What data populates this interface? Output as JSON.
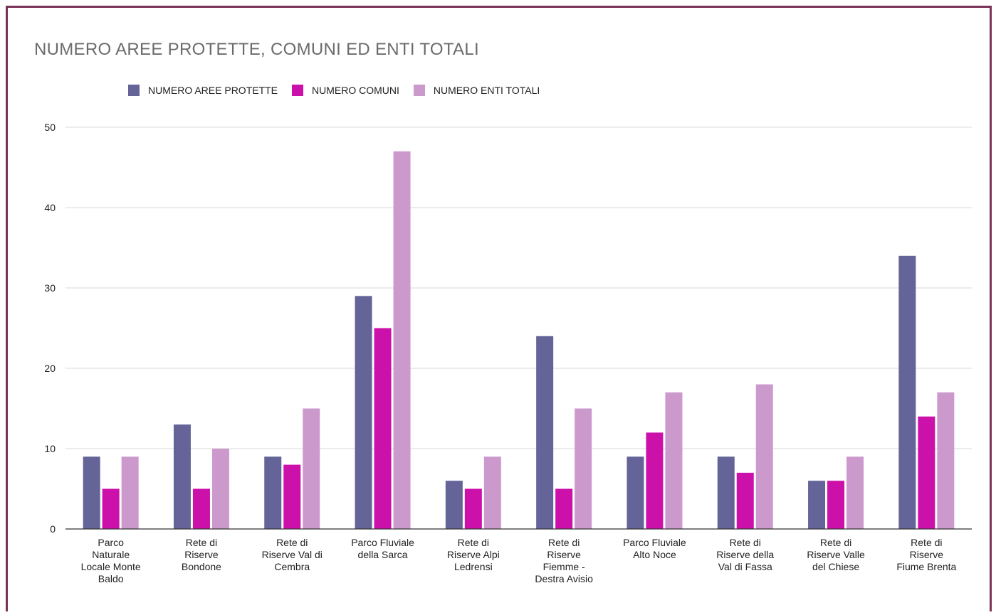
{
  "chart_data": {
    "type": "bar",
    "title": "NUMERO AREE PROTETTE, COMUNI ED ENTI TOTALI",
    "categories": [
      [
        "Parco",
        "Naturale",
        "Locale Monte",
        "Baldo"
      ],
      [
        "Rete di",
        "Riserve",
        "Bondone"
      ],
      [
        "Rete di",
        "Riserve Val di",
        "Cembra"
      ],
      [
        "Parco Fluviale",
        "della Sarca"
      ],
      [
        "Rete di",
        "Riserve Alpi",
        "Ledrensi"
      ],
      [
        "Rete di",
        "Riserve",
        "Fiemme -",
        "Destra Avisio"
      ],
      [
        "Parco Fluviale",
        "Alto Noce"
      ],
      [
        "Rete di",
        "Riserve della",
        "Val di Fassa"
      ],
      [
        "Rete di",
        "Riserve Valle",
        "del Chiese"
      ],
      [
        "Rete di",
        "Riserve",
        "Fiume Brenta"
      ]
    ],
    "series": [
      {
        "name": "NUMERO AREE PROTETTE",
        "color": "#646498",
        "values": [
          9,
          13,
          9,
          29,
          6,
          24,
          9,
          9,
          6,
          34
        ]
      },
      {
        "name": "NUMERO COMUNI",
        "color": "#cc11aa",
        "values": [
          5,
          5,
          8,
          25,
          5,
          5,
          12,
          7,
          6,
          14
        ]
      },
      {
        "name": "NUMERO ENTI TOTALI",
        "color": "#cc99cc",
        "values": [
          9,
          10,
          15,
          47,
          9,
          15,
          17,
          18,
          9,
          17
        ]
      }
    ],
    "ylim": [
      0,
      50
    ],
    "yticks": [
      0,
      10,
      20,
      30,
      40,
      50
    ],
    "grid": true,
    "legend_position": "top-left"
  }
}
